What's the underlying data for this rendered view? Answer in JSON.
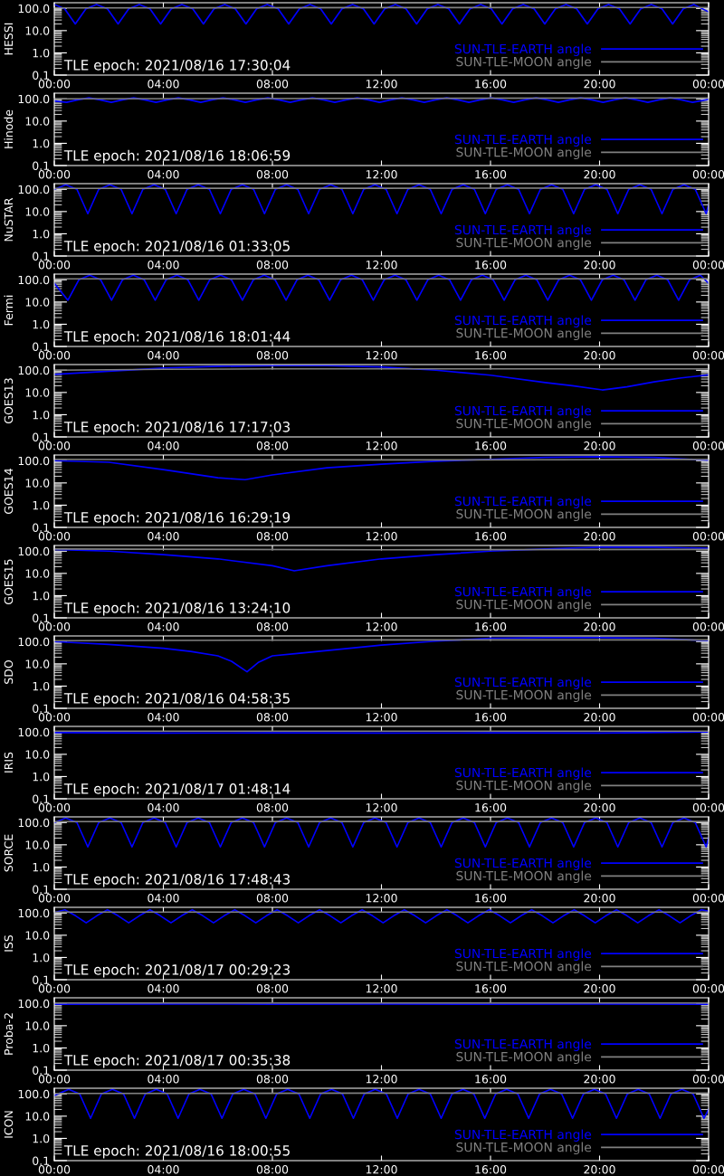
{
  "chart_data": [
    {
      "type": "line",
      "ylabel": "HESSI",
      "annotations": [
        "TLE epoch: 2021/08/16 17:30:04"
      ],
      "log": true,
      "legend": "bottom right",
      "xlim": [
        0,
        24
      ],
      "xticks": [
        {
          "value": 0,
          "label": "00:00"
        },
        {
          "value": 4,
          "label": "04:00"
        },
        {
          "value": 8,
          "label": "08:00"
        },
        {
          "value": 12,
          "label": "12:00"
        },
        {
          "value": 16,
          "label": "16:00"
        },
        {
          "value": 20,
          "label": "20:00"
        },
        {
          "value": 24,
          "label": "00:00"
        }
      ],
      "ylim": [
        0.1,
        180
      ],
      "yticks": [
        {
          "value": 0.1,
          "label": "0.1"
        },
        {
          "value": 1,
          "label": "1.0"
        },
        {
          "value": 10,
          "label": "10.0"
        },
        {
          "value": 100,
          "label": "100.0"
        }
      ],
      "series": [
        {
          "name": "SUN-TLE-EARTH angle",
          "color": "#0000ff",
          "x": [
            0,
            0.38,
            0.77,
            1.16,
            1.55,
            1.95,
            2.34,
            2.73,
            3.12,
            3.51,
            3.9,
            4.29,
            4.68,
            5.08,
            5.47,
            5.86,
            6.25,
            6.64,
            7.03,
            7.42,
            7.81,
            8.21,
            8.6,
            8.99,
            9.38,
            9.77,
            10.16,
            10.55,
            10.94,
            11.34,
            11.73,
            12.12,
            12.51,
            12.9,
            13.29,
            13.68,
            14.07,
            14.47,
            14.86,
            15.25,
            15.64,
            16.03,
            16.42,
            16.81,
            17.2,
            17.6,
            17.99,
            18.38,
            18.77,
            19.16,
            19.55,
            19.94,
            20.33,
            20.73,
            21.12,
            21.51,
            21.9,
            22.29,
            22.68,
            23.07,
            23.46,
            24
          ],
          "values": [
            150,
            95,
            20,
            95,
            150,
            95,
            20,
            95,
            150,
            95,
            20,
            95,
            150,
            95,
            20,
            95,
            150,
            95,
            20,
            95,
            150,
            95,
            20,
            95,
            150,
            95,
            20,
            95,
            150,
            95,
            20,
            95,
            150,
            95,
            20,
            95,
            150,
            95,
            20,
            95,
            150,
            95,
            20,
            95,
            150,
            95,
            20,
            95,
            150,
            95,
            20,
            95,
            150,
            95,
            20,
            95,
            150,
            95,
            20,
            95,
            150,
            70
          ]
        },
        {
          "name": "SUN-TLE-MOON angle",
          "color": "#808080",
          "x": [
            0,
            12,
            24
          ],
          "values": [
            105,
            108,
            110
          ]
        }
      ]
    },
    {
      "type": "line",
      "ylabel": "Hinode",
      "annotations": [
        "TLE epoch: 2021/08/16 18:06:59"
      ],
      "log": true,
      "legend": "bottom right",
      "xlim": [
        0,
        24
      ],
      "xticks": [
        {
          "value": 0,
          "label": "00:00"
        },
        {
          "value": 4,
          "label": "04:00"
        },
        {
          "value": 8,
          "label": "08:00"
        },
        {
          "value": 12,
          "label": "12:00"
        },
        {
          "value": 16,
          "label": "16:00"
        },
        {
          "value": 20,
          "label": "20:00"
        },
        {
          "value": 24,
          "label": "00:00"
        }
      ],
      "ylim": [
        0.1,
        180
      ],
      "yticks": [
        {
          "value": 0.1,
          "label": "0.1"
        },
        {
          "value": 1,
          "label": "1.0"
        },
        {
          "value": 10,
          "label": "10.0"
        },
        {
          "value": 100,
          "label": "100.0"
        }
      ],
      "series": [
        {
          "name": "SUN-TLE-EARTH angle",
          "color": "#0000ff",
          "x": [
            0,
            0.45,
            0.86,
            1.27,
            1.68,
            2.09,
            2.5,
            2.91,
            3.32,
            3.73,
            4.14,
            4.55,
            4.96,
            5.37,
            5.78,
            6.19,
            6.6,
            7.01,
            7.42,
            7.83,
            8.24,
            8.65,
            9.06,
            9.47,
            9.88,
            10.29,
            10.7,
            11.11,
            11.52,
            11.93,
            12.34,
            12.75,
            13.16,
            13.57,
            13.98,
            14.39,
            14.8,
            15.21,
            15.62,
            16.03,
            16.44,
            16.85,
            17.26,
            17.67,
            18.08,
            18.49,
            18.9,
            19.31,
            19.72,
            20.13,
            20.54,
            20.95,
            21.36,
            21.77,
            22.18,
            22.59,
            23.0,
            23.41,
            24
          ],
          "values": [
            80,
            70,
            90,
            112,
            90,
            70,
            90,
            112,
            90,
            70,
            90,
            112,
            90,
            70,
            90,
            112,
            90,
            70,
            90,
            112,
            90,
            70,
            90,
            112,
            90,
            70,
            90,
            112,
            90,
            70,
            90,
            112,
            90,
            70,
            90,
            112,
            90,
            70,
            90,
            112,
            90,
            70,
            90,
            112,
            90,
            70,
            90,
            112,
            90,
            70,
            90,
            112,
            90,
            70,
            90,
            112,
            90,
            70,
            95
          ]
        },
        {
          "name": "SUN-TLE-MOON angle",
          "color": "#808080",
          "x": [
            0,
            12,
            24
          ],
          "values": [
            100,
            105,
            110
          ]
        }
      ]
    },
    {
      "type": "line",
      "ylabel": "NuSTAR",
      "annotations": [
        "TLE epoch: 2021/08/16 01:33:05"
      ],
      "log": true,
      "legend": "bottom right",
      "xlim": [
        0,
        24
      ],
      "xticks": [
        {
          "value": 0,
          "label": "00:00"
        },
        {
          "value": 4,
          "label": "04:00"
        },
        {
          "value": 8,
          "label": "08:00"
        },
        {
          "value": 12,
          "label": "12:00"
        },
        {
          "value": 16,
          "label": "16:00"
        },
        {
          "value": 20,
          "label": "20:00"
        },
        {
          "value": 24,
          "label": "00:00"
        }
      ],
      "ylim": [
        0.1,
        180
      ],
      "yticks": [
        {
          "value": 0.1,
          "label": "0.1"
        },
        {
          "value": 1,
          "label": "1.0"
        },
        {
          "value": 10,
          "label": "10.0"
        },
        {
          "value": 100,
          "label": "100.0"
        }
      ],
      "series": [
        {
          "name": "SUN-TLE-EARTH angle",
          "color": "#0000ff",
          "x": [
            0,
            0.42,
            0.83,
            1.23,
            1.63,
            2.04,
            2.45,
            2.85,
            3.25,
            3.66,
            4.07,
            4.47,
            4.87,
            5.28,
            5.69,
            6.09,
            6.49,
            6.9,
            7.31,
            7.71,
            8.11,
            8.52,
            8.93,
            9.33,
            9.73,
            10.14,
            10.55,
            10.95,
            11.35,
            11.76,
            12.17,
            12.57,
            12.97,
            13.38,
            13.79,
            14.19,
            14.59,
            15.0,
            15.41,
            15.81,
            16.21,
            16.62,
            17.03,
            17.43,
            17.83,
            18.24,
            18.65,
            19.05,
            19.45,
            19.86,
            20.27,
            20.67,
            21.07,
            21.48,
            21.89,
            22.29,
            22.69,
            23.1,
            23.51,
            23.91,
            24
          ],
          "values": [
            100,
            160,
            100,
            8,
            100,
            160,
            100,
            8,
            100,
            160,
            100,
            8,
            100,
            160,
            100,
            8,
            100,
            160,
            100,
            8,
            100,
            160,
            100,
            8,
            100,
            160,
            100,
            8,
            100,
            160,
            100,
            8,
            100,
            160,
            100,
            8,
            100,
            160,
            100,
            8,
            100,
            160,
            100,
            8,
            100,
            160,
            100,
            8,
            100,
            160,
            100,
            8,
            100,
            160,
            100,
            8,
            100,
            160,
            100,
            8,
            20
          ]
        },
        {
          "name": "SUN-TLE-MOON angle",
          "color": "#808080",
          "x": [
            0,
            12,
            24
          ],
          "values": [
            110,
            112,
            115
          ]
        }
      ]
    },
    {
      "type": "line",
      "ylabel": "Fermi",
      "annotations": [
        "TLE epoch: 2021/08/16 18:01:44"
      ],
      "log": true,
      "legend": "bottom right",
      "xlim": [
        0,
        24
      ],
      "xticks": [
        {
          "value": 0,
          "label": "00:00"
        },
        {
          "value": 4,
          "label": "04:00"
        },
        {
          "value": 8,
          "label": "08:00"
        },
        {
          "value": 12,
          "label": "12:00"
        },
        {
          "value": 16,
          "label": "16:00"
        },
        {
          "value": 20,
          "label": "20:00"
        },
        {
          "value": 24,
          "label": "00:00"
        }
      ],
      "ylim": [
        0.1,
        180
      ],
      "yticks": [
        {
          "value": 0.1,
          "label": "0.1"
        },
        {
          "value": 1,
          "label": "1.0"
        },
        {
          "value": 10,
          "label": "10.0"
        },
        {
          "value": 100,
          "label": "100.0"
        }
      ],
      "series": [
        {
          "name": "SUN-TLE-EARTH angle",
          "color": "#0000ff",
          "x": [
            0,
            0.5,
            0.9,
            1.3,
            1.7,
            2.1,
            2.5,
            2.9,
            3.3,
            3.7,
            4.1,
            4.5,
            4.9,
            5.3,
            5.7,
            6.1,
            6.5,
            6.9,
            7.3,
            7.7,
            8.1,
            8.5,
            8.9,
            9.3,
            9.7,
            10.1,
            10.5,
            10.9,
            11.3,
            11.7,
            12.1,
            12.5,
            12.9,
            13.3,
            13.7,
            14.1,
            14.5,
            14.9,
            15.3,
            15.7,
            16.1,
            16.5,
            16.9,
            17.3,
            17.7,
            18.1,
            18.5,
            18.9,
            19.3,
            19.7,
            20.1,
            20.5,
            20.9,
            21.3,
            21.7,
            22.1,
            22.5,
            22.9,
            23.3,
            23.7,
            24
          ],
          "values": [
            70,
            12,
            100,
            160,
            100,
            12,
            100,
            160,
            100,
            12,
            100,
            160,
            100,
            12,
            100,
            160,
            100,
            12,
            100,
            160,
            100,
            12,
            100,
            160,
            100,
            12,
            100,
            160,
            100,
            12,
            100,
            160,
            100,
            12,
            100,
            160,
            100,
            12,
            100,
            160,
            100,
            12,
            100,
            160,
            100,
            12,
            100,
            160,
            100,
            12,
            100,
            160,
            100,
            12,
            100,
            160,
            100,
            12,
            100,
            160,
            70
          ]
        },
        {
          "name": "SUN-TLE-MOON angle",
          "color": "#808080",
          "x": [
            0,
            12,
            24
          ],
          "values": [
            110,
            110,
            112
          ]
        }
      ]
    },
    {
      "type": "line",
      "ylabel": "GOES13",
      "annotations": [
        "TLE epoch: 2021/08/16 17:17:03"
      ],
      "log": true,
      "legend": "bottom right",
      "xlim": [
        0,
        24
      ],
      "xticks": [
        {
          "value": 0,
          "label": "00:00"
        },
        {
          "value": 4,
          "label": "04:00"
        },
        {
          "value": 8,
          "label": "08:00"
        },
        {
          "value": 12,
          "label": "12:00"
        },
        {
          "value": 16,
          "label": "16:00"
        },
        {
          "value": 20,
          "label": "20:00"
        },
        {
          "value": 24,
          "label": "00:00"
        }
      ],
      "ylim": [
        0.1,
        180
      ],
      "yticks": [
        {
          "value": 0.1,
          "label": "0.1"
        },
        {
          "value": 1,
          "label": "1.0"
        },
        {
          "value": 10,
          "label": "10.0"
        },
        {
          "value": 100,
          "label": "100.0"
        }
      ],
      "series": [
        {
          "name": "SUN-TLE-EARTH angle",
          "color": "#0000ff",
          "x": [
            0,
            2,
            4,
            6,
            8,
            10,
            12,
            14,
            16,
            18,
            19,
            20.1,
            21,
            22,
            23,
            24
          ],
          "values": [
            65,
            90,
            125,
            150,
            160,
            160,
            140,
            100,
            60,
            28,
            20,
            13,
            18,
            30,
            45,
            62
          ]
        },
        {
          "name": "SUN-TLE-MOON angle",
          "color": "#808080",
          "x": [
            0,
            4,
            8,
            12,
            16,
            20,
            24
          ],
          "values": [
            100,
            110,
            115,
            115,
            115,
            115,
            115
          ]
        }
      ]
    },
    {
      "type": "line",
      "ylabel": "GOES14",
      "annotations": [
        "TLE epoch: 2021/08/16 16:29:19"
      ],
      "log": true,
      "legend": "bottom right",
      "xlim": [
        0,
        24
      ],
      "xticks": [
        {
          "value": 0,
          "label": "00:00"
        },
        {
          "value": 4,
          "label": "04:00"
        },
        {
          "value": 8,
          "label": "08:00"
        },
        {
          "value": 12,
          "label": "12:00"
        },
        {
          "value": 16,
          "label": "16:00"
        },
        {
          "value": 20,
          "label": "20:00"
        },
        {
          "value": 24,
          "label": "00:00"
        }
      ],
      "ylim": [
        0.1,
        180
      ],
      "yticks": [
        {
          "value": 0.1,
          "label": "0.1"
        },
        {
          "value": 1,
          "label": "1.0"
        },
        {
          "value": 10,
          "label": "10.0"
        },
        {
          "value": 100,
          "label": "100.0"
        }
      ],
      "series": [
        {
          "name": "SUN-TLE-EARTH angle",
          "color": "#0000ff",
          "x": [
            0,
            2,
            4,
            6,
            7,
            8,
            10,
            12,
            14,
            16,
            18,
            20,
            22,
            24
          ],
          "values": [
            100,
            85,
            40,
            17,
            14,
            23,
            48,
            70,
            95,
            115,
            140,
            150,
            140,
            105
          ]
        },
        {
          "name": "SUN-TLE-MOON angle",
          "color": "#808080",
          "x": [
            0,
            6,
            12,
            18,
            24
          ],
          "values": [
            115,
            110,
            108,
            110,
            115
          ]
        }
      ]
    },
    {
      "type": "line",
      "ylabel": "GOES15",
      "annotations": [
        "TLE epoch: 2021/08/16 13:24:10"
      ],
      "log": true,
      "legend": "bottom right",
      "xlim": [
        0,
        24
      ],
      "xticks": [
        {
          "value": 0,
          "label": "00:00"
        },
        {
          "value": 4,
          "label": "04:00"
        },
        {
          "value": 8,
          "label": "08:00"
        },
        {
          "value": 12,
          "label": "12:00"
        },
        {
          "value": 16,
          "label": "16:00"
        },
        {
          "value": 20,
          "label": "20:00"
        },
        {
          "value": 24,
          "label": "00:00"
        }
      ],
      "ylim": [
        0.1,
        180
      ],
      "yticks": [
        {
          "value": 0.1,
          "label": "0.1"
        },
        {
          "value": 1,
          "label": "1.0"
        },
        {
          "value": 10,
          "label": "10.0"
        },
        {
          "value": 100,
          "label": "100.0"
        }
      ],
      "series": [
        {
          "name": "SUN-TLE-EARTH angle",
          "color": "#0000ff",
          "x": [
            0,
            2,
            4,
            6,
            8,
            8.8,
            10,
            12,
            14,
            16,
            18,
            20,
            22,
            24
          ],
          "values": [
            120,
            100,
            70,
            45,
            22,
            13,
            22,
            45,
            70,
            100,
            125,
            150,
            150,
            135
          ]
        },
        {
          "name": "SUN-TLE-MOON angle",
          "color": "#808080",
          "x": [
            0,
            12,
            24
          ],
          "values": [
            125,
            115,
            120
          ]
        }
      ]
    },
    {
      "type": "line",
      "ylabel": "SDO",
      "annotations": [
        "TLE epoch: 2021/08/16 04:58:35"
      ],
      "log": true,
      "legend": "bottom right",
      "xlim": [
        0,
        24
      ],
      "xticks": [
        {
          "value": 0,
          "label": "00:00"
        },
        {
          "value": 4,
          "label": "04:00"
        },
        {
          "value": 8,
          "label": "08:00"
        },
        {
          "value": 12,
          "label": "12:00"
        },
        {
          "value": 16,
          "label": "16:00"
        },
        {
          "value": 20,
          "label": "20:00"
        },
        {
          "value": 24,
          "label": "00:00"
        }
      ],
      "ylim": [
        0.1,
        180
      ],
      "yticks": [
        {
          "value": 0.1,
          "label": "0.1"
        },
        {
          "value": 1,
          "label": "1.0"
        },
        {
          "value": 10,
          "label": "10.0"
        },
        {
          "value": 100,
          "label": "100.0"
        }
      ],
      "series": [
        {
          "name": "SUN-TLE-EARTH angle",
          "color": "#0000ff",
          "x": [
            0,
            2,
            4,
            5,
            6,
            6.5,
            7.07,
            7.5,
            8,
            9,
            10,
            12,
            14,
            16,
            18,
            20,
            22,
            24
          ],
          "values": [
            100,
            75,
            50,
            36,
            23,
            13,
            4.4,
            12,
            23,
            30,
            40,
            70,
            105,
            140,
            150,
            150,
            140,
            110
          ]
        },
        {
          "name": "SUN-TLE-MOON angle",
          "color": "#808080",
          "x": [
            0,
            12,
            24
          ],
          "values": [
            110,
            120,
            120
          ]
        }
      ]
    },
    {
      "type": "line",
      "ylabel": "IRIS",
      "annotations": [
        "TLE epoch: 2021/08/17 01:48:14"
      ],
      "log": true,
      "legend": "bottom right",
      "xlim": [
        0,
        24
      ],
      "xticks": [
        {
          "value": 0,
          "label": "00:00"
        },
        {
          "value": 4,
          "label": "04:00"
        },
        {
          "value": 8,
          "label": "08:00"
        },
        {
          "value": 12,
          "label": "12:00"
        },
        {
          "value": 16,
          "label": "16:00"
        },
        {
          "value": 20,
          "label": "20:00"
        },
        {
          "value": 24,
          "label": "00:00"
        }
      ],
      "ylim": [
        0.1,
        180
      ],
      "yticks": [
        {
          "value": 0.1,
          "label": "0.1"
        },
        {
          "value": 1,
          "label": "1.0"
        },
        {
          "value": 10,
          "label": "10.0"
        },
        {
          "value": 100,
          "label": "100.0"
        }
      ],
      "series": [
        {
          "name": "SUN-TLE-EARTH angle",
          "color": "#0000ff",
          "x": [
            0,
            4,
            8,
            12,
            16,
            20,
            24
          ],
          "values": [
            95,
            90,
            92,
            90,
            92,
            90,
            100
          ]
        },
        {
          "name": "SUN-TLE-MOON angle",
          "color": "#808080",
          "x": [
            0,
            12,
            24
          ],
          "values": [
            110,
            110,
            110
          ]
        }
      ]
    },
    {
      "type": "line",
      "ylabel": "SORCE",
      "annotations": [
        "TLE epoch: 2021/08/16 17:48:43"
      ],
      "log": true,
      "legend": "bottom right",
      "xlim": [
        0,
        24
      ],
      "xticks": [
        {
          "value": 0,
          "label": "00:00"
        },
        {
          "value": 4,
          "label": "04:00"
        },
        {
          "value": 8,
          "label": "08:00"
        },
        {
          "value": 12,
          "label": "12:00"
        },
        {
          "value": 16,
          "label": "16:00"
        },
        {
          "value": 20,
          "label": "20:00"
        },
        {
          "value": 24,
          "label": "00:00"
        }
      ],
      "ylim": [
        0.1,
        180
      ],
      "yticks": [
        {
          "value": 0.1,
          "label": "0.1"
        },
        {
          "value": 1,
          "label": "1.0"
        },
        {
          "value": 10,
          "label": "10.0"
        },
        {
          "value": 100,
          "label": "100.0"
        }
      ],
      "series": [
        {
          "name": "SUN-TLE-EARTH angle",
          "color": "#0000ff",
          "x": [
            0,
            0.42,
            0.83,
            1.23,
            1.63,
            2.04,
            2.45,
            2.85,
            3.25,
            3.66,
            4.07,
            4.47,
            4.87,
            5.28,
            5.69,
            6.09,
            6.49,
            6.9,
            7.31,
            7.71,
            8.11,
            8.52,
            8.93,
            9.33,
            9.73,
            10.14,
            10.55,
            10.95,
            11.35,
            11.76,
            12.17,
            12.57,
            12.97,
            13.38,
            13.79,
            14.19,
            14.59,
            15.0,
            15.41,
            15.81,
            16.21,
            16.62,
            17.03,
            17.43,
            17.83,
            18.24,
            18.65,
            19.05,
            19.45,
            19.86,
            20.27,
            20.67,
            21.07,
            21.48,
            21.89,
            22.29,
            22.69,
            23.1,
            23.51,
            23.91,
            24
          ],
          "values": [
            100,
            160,
            100,
            8,
            100,
            160,
            100,
            8,
            100,
            160,
            100,
            8,
            100,
            160,
            100,
            8,
            100,
            160,
            100,
            8,
            100,
            160,
            100,
            8,
            100,
            160,
            100,
            8,
            100,
            160,
            100,
            8,
            100,
            160,
            100,
            8,
            100,
            160,
            100,
            8,
            100,
            160,
            100,
            8,
            100,
            160,
            100,
            8,
            100,
            160,
            100,
            8,
            100,
            160,
            100,
            8,
            100,
            160,
            100,
            8,
            20
          ]
        },
        {
          "name": "SUN-TLE-MOON angle",
          "color": "#808080",
          "x": [
            0,
            12,
            24
          ],
          "values": [
            110,
            112,
            112
          ]
        }
      ]
    },
    {
      "type": "line",
      "ylabel": "ISS",
      "annotations": [
        "TLE epoch: 2021/08/17 00:29:23"
      ],
      "log": true,
      "legend": "bottom right",
      "xlim": [
        0,
        24
      ],
      "xticks": [
        {
          "value": 0,
          "label": "00:00"
        },
        {
          "value": 4,
          "label": "04:00"
        },
        {
          "value": 8,
          "label": "08:00"
        },
        {
          "value": 12,
          "label": "12:00"
        },
        {
          "value": 16,
          "label": "16:00"
        },
        {
          "value": 20,
          "label": "20:00"
        },
        {
          "value": 24,
          "label": "00:00"
        }
      ],
      "ylim": [
        0.1,
        180
      ],
      "yticks": [
        {
          "value": 0.1,
          "label": "0.1"
        },
        {
          "value": 1,
          "label": "1.0"
        },
        {
          "value": 10,
          "label": "10.0"
        },
        {
          "value": 100,
          "label": "100.0"
        }
      ],
      "series": [
        {
          "name": "SUN-TLE-EARTH angle",
          "color": "#0000ff",
          "x": [
            0,
            0.39,
            0.78,
            1.17,
            1.56,
            1.95,
            2.34,
            2.73,
            3.12,
            3.51,
            3.89,
            4.28,
            4.67,
            5.06,
            5.45,
            5.84,
            6.23,
            6.62,
            7.0,
            7.39,
            7.78,
            8.17,
            8.56,
            8.95,
            9.34,
            9.73,
            10.12,
            10.51,
            10.9,
            11.29,
            11.67,
            12.06,
            12.45,
            12.84,
            13.23,
            13.62,
            14.01,
            14.4,
            14.78,
            15.17,
            15.56,
            15.95,
            16.34,
            16.73,
            17.12,
            17.51,
            17.9,
            18.29,
            18.68,
            19.07,
            19.45,
            19.84,
            20.23,
            20.62,
            21.01,
            21.4,
            21.79,
            22.18,
            22.56,
            22.95,
            23.34,
            23.73,
            24
          ],
          "values": [
            105,
            140,
            75,
            36,
            75,
            140,
            75,
            36,
            75,
            140,
            75,
            36,
            75,
            140,
            75,
            36,
            75,
            140,
            75,
            36,
            75,
            140,
            75,
            36,
            75,
            140,
            75,
            36,
            75,
            140,
            75,
            36,
            75,
            140,
            75,
            36,
            75,
            140,
            75,
            36,
            75,
            140,
            75,
            36,
            75,
            140,
            75,
            36,
            75,
            140,
            75,
            36,
            75,
            140,
            75,
            36,
            75,
            140,
            75,
            36,
            75,
            140,
            120
          ]
        },
        {
          "name": "SUN-TLE-MOON angle",
          "color": "#808080",
          "x": [
            0,
            12,
            24
          ],
          "values": [
            110,
            110,
            110
          ]
        }
      ]
    },
    {
      "type": "line",
      "ylabel": "Proba-2",
      "annotations": [
        "TLE epoch: 2021/08/17 00:35:38"
      ],
      "log": true,
      "legend": "bottom right",
      "xlim": [
        0,
        24
      ],
      "xticks": [
        {
          "value": 0,
          "label": "00:00"
        },
        {
          "value": 4,
          "label": "04:00"
        },
        {
          "value": 8,
          "label": "08:00"
        },
        {
          "value": 12,
          "label": "12:00"
        },
        {
          "value": 16,
          "label": "16:00"
        },
        {
          "value": 20,
          "label": "20:00"
        },
        {
          "value": 24,
          "label": "00:00"
        }
      ],
      "ylim": [
        0.1,
        180
      ],
      "yticks": [
        {
          "value": 0.1,
          "label": "0.1"
        },
        {
          "value": 1,
          "label": "1.0"
        },
        {
          "value": 10,
          "label": "10.0"
        },
        {
          "value": 100,
          "label": "100.0"
        }
      ],
      "series": [
        {
          "name": "SUN-TLE-EARTH angle",
          "color": "#0000ff",
          "x": [
            0,
            4,
            8,
            12,
            16,
            20,
            24
          ],
          "values": [
            92,
            95,
            92,
            95,
            92,
            95,
            92
          ]
        },
        {
          "name": "SUN-TLE-MOON angle",
          "color": "#808080",
          "x": [
            0,
            12,
            24
          ],
          "values": [
            105,
            105,
            105
          ]
        }
      ]
    },
    {
      "type": "line",
      "ylabel": "ICON",
      "annotations": [
        "TLE epoch: 2021/08/16 18:00:55"
      ],
      "log": true,
      "legend": "bottom right",
      "xlim": [
        0,
        24
      ],
      "xticks": [
        {
          "value": 0,
          "label": "00:00"
        },
        {
          "value": 4,
          "label": "04:00"
        },
        {
          "value": 8,
          "label": "08:00"
        },
        {
          "value": 12,
          "label": "12:00"
        },
        {
          "value": 16,
          "label": "16:00"
        },
        {
          "value": 20,
          "label": "20:00"
        },
        {
          "value": 24,
          "label": "00:00"
        }
      ],
      "ylim": [
        0.1,
        180
      ],
      "yticks": [
        {
          "value": 0.1,
          "label": "0.1"
        },
        {
          "value": 1,
          "label": "1.0"
        },
        {
          "value": 10,
          "label": "10.0"
        },
        {
          "value": 100,
          "label": "100.0"
        }
      ],
      "series": [
        {
          "name": "SUN-TLE-EARTH angle",
          "color": "#0000ff",
          "x": [
            0,
            0.53,
            0.93,
            1.33,
            1.73,
            2.13,
            2.54,
            2.94,
            3.34,
            3.74,
            4.14,
            4.54,
            4.94,
            5.34,
            5.75,
            6.15,
            6.55,
            6.95,
            7.36,
            7.76,
            8.16,
            8.56,
            8.97,
            9.37,
            9.77,
            10.17,
            10.57,
            10.97,
            11.37,
            11.77,
            12.18,
            12.58,
            12.98,
            13.38,
            13.79,
            14.19,
            14.59,
            14.99,
            15.39,
            15.79,
            16.19,
            16.59,
            17.0,
            17.4,
            17.8,
            18.2,
            18.61,
            19.01,
            19.41,
            19.81,
            20.22,
            20.62,
            21.02,
            21.42,
            21.82,
            22.22,
            22.62,
            23.02,
            23.43,
            23.83,
            24
          ],
          "values": [
            85,
            160,
            100,
            8,
            100,
            160,
            100,
            8,
            100,
            160,
            100,
            8,
            100,
            160,
            100,
            8,
            100,
            160,
            100,
            8,
            100,
            160,
            100,
            8,
            100,
            160,
            100,
            8,
            100,
            160,
            100,
            8,
            100,
            160,
            100,
            8,
            100,
            160,
            100,
            8,
            100,
            160,
            100,
            8,
            100,
            160,
            100,
            8,
            100,
            160,
            100,
            8,
            100,
            160,
            100,
            8,
            100,
            160,
            100,
            8,
            20
          ]
        },
        {
          "name": "SUN-TLE-MOON angle",
          "color": "#808080",
          "x": [
            0,
            12,
            24
          ],
          "values": [
            105,
            108,
            110
          ]
        }
      ]
    }
  ]
}
